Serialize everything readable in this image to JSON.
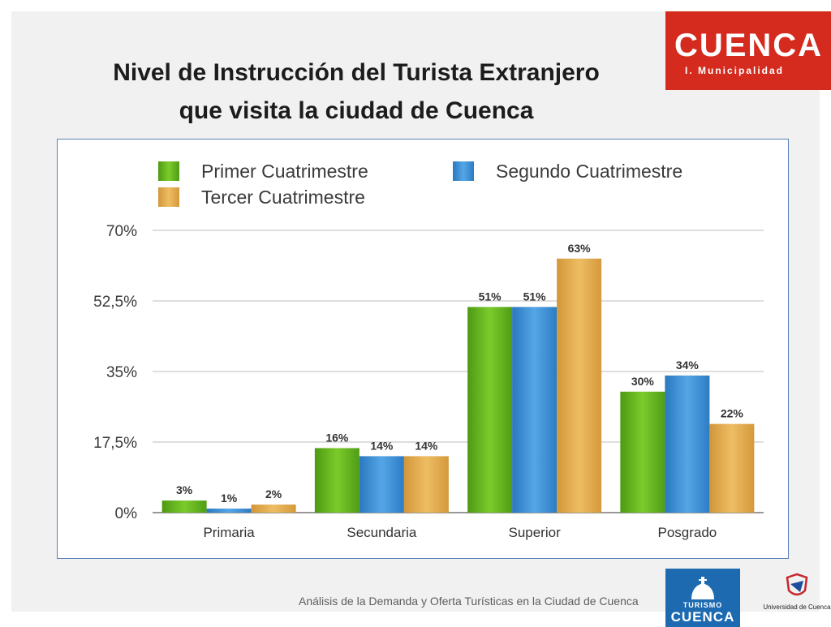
{
  "slide": {
    "title_line1": "Nivel de Instrucción del Turista Extranjero",
    "title_line2": "que visita la ciudad de Cuenca",
    "logo_top": {
      "word": "CUENCA",
      "sub": "I. Municipalidad"
    },
    "footer_text": "Análisis de la Demanda y Oferta Turísticas en la Ciudad de Cuenca",
    "logo_turismo": {
      "line1": "TURISMO",
      "line2": "CUENCA"
    },
    "logo_university": "Universidad de Cuenca"
  },
  "colors": {
    "brand_red": "#d52b1e",
    "brand_blue": "#1d6ab0",
    "primer": "#62b51f",
    "segundo": "#3b8ed4",
    "tercer": "#e0a848"
  },
  "chart_data": {
    "type": "bar",
    "categories": [
      "Primaria",
      "Secundaria",
      "Superior",
      "Posgrado"
    ],
    "series": [
      {
        "name": "Primer Cuatrimestre",
        "values": [
          3,
          16,
          51,
          30
        ],
        "labels": [
          "3%",
          "16%",
          "51%",
          "30%"
        ],
        "color": "#62b51f"
      },
      {
        "name": "Segundo Cuatrimestre",
        "values": [
          1,
          14,
          51,
          34
        ],
        "labels": [
          "1%",
          "14%",
          "51%",
          "34%"
        ],
        "color": "#3b8ed4"
      },
      {
        "name": "Tercer Cuatrimestre",
        "values": [
          2,
          14,
          63,
          22
        ],
        "labels": [
          "2%",
          "14%",
          "63%",
          "22%"
        ],
        "color": "#e0a848"
      }
    ],
    "yticks": [
      0,
      17.5,
      35,
      52.5,
      70
    ],
    "ytick_labels": [
      "0%",
      "17,5%",
      "35%",
      "52,5%",
      "70%"
    ],
    "ylim": [
      0,
      70
    ],
    "grid": true,
    "legend_position": "top"
  }
}
